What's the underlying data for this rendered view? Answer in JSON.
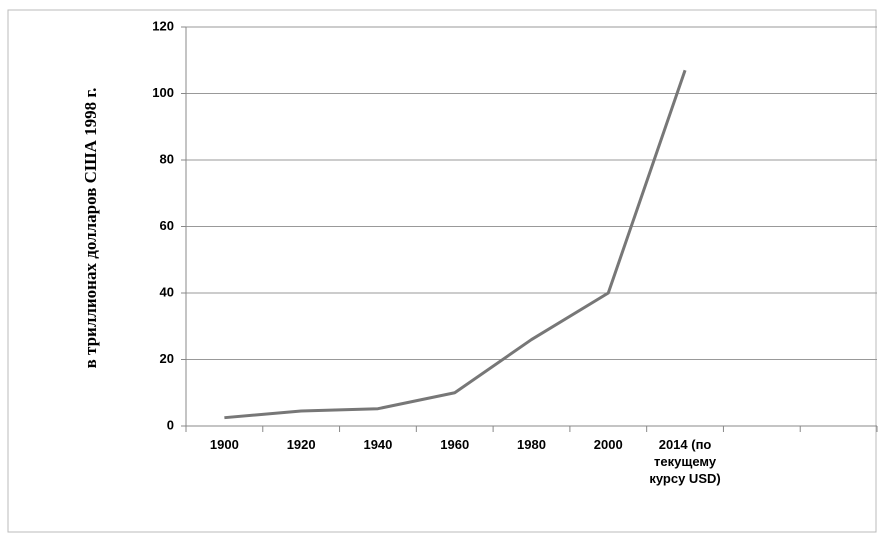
{
  "chart_data": {
    "type": "line",
    "y_label": "в триллионах долларов США 1998 г.",
    "categories": [
      "1900",
      "1920",
      "1940",
      "1960",
      "1980",
      "2000",
      "2014 (по текущему курсу USD)",
      null,
      null
    ],
    "series": [
      {
        "color": "#777777",
        "values": [
          2.5,
          4.5,
          5.2,
          10,
          26,
          40,
          107,
          null,
          null
        ]
      }
    ],
    "ylim": [
      0,
      120
    ],
    "yticks": [
      0,
      20,
      40,
      60,
      80,
      100,
      120
    ],
    "grid": true
  }
}
